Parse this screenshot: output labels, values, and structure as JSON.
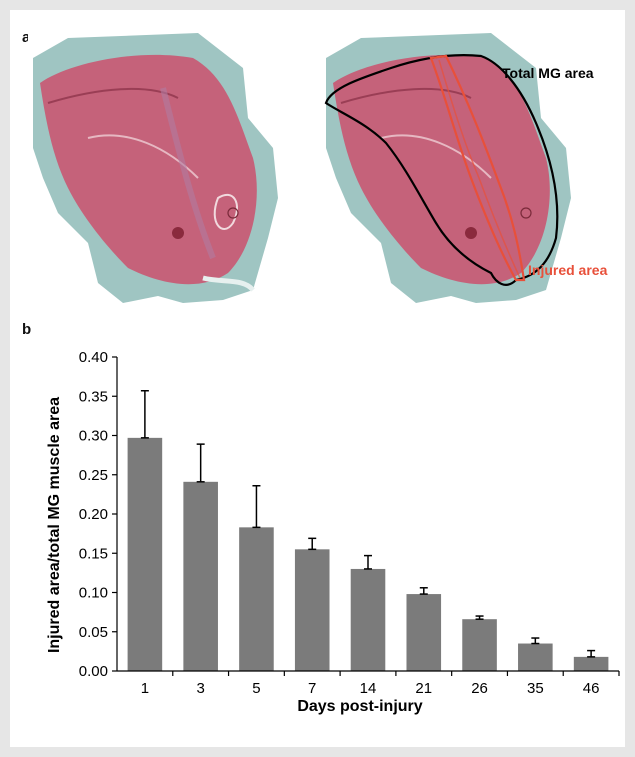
{
  "panels": {
    "a": "a",
    "b": "b"
  },
  "annotations": {
    "total": "Total MG area",
    "injured": "Injured area"
  },
  "colors": {
    "bar": "#7b7b7b",
    "tissue": "#c5627a",
    "background_tissue": "#9fc5c2",
    "total_outline": "#000000",
    "injured_outline": "#e8503a"
  },
  "chart_data": {
    "type": "bar",
    "categories": [
      "1",
      "3",
      "5",
      "7",
      "14",
      "21",
      "26",
      "35",
      "46"
    ],
    "values": [
      0.297,
      0.241,
      0.183,
      0.155,
      0.13,
      0.098,
      0.066,
      0.035,
      0.018
    ],
    "error": [
      0.06,
      0.048,
      0.053,
      0.014,
      0.017,
      0.008,
      0.004,
      0.007,
      0.008
    ],
    "xlabel": "Days post-injury",
    "ylabel": "Injured area/total MG muscle area",
    "ylim": [
      0,
      0.4
    ],
    "yticks": [
      "0.00",
      "0.05",
      "0.10",
      "0.15",
      "0.20",
      "0.25",
      "0.30",
      "0.35",
      "0.40"
    ],
    "grid": false,
    "legend": "none"
  }
}
